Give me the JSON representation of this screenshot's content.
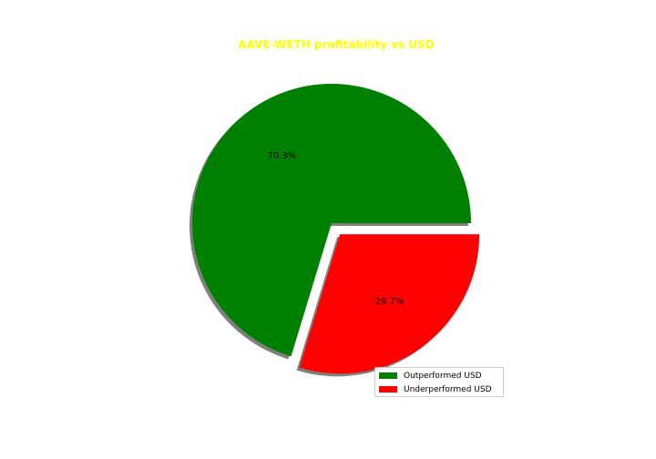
{
  "chart_data": {
    "type": "pie",
    "title": "AAVE-WETH profitability vs USD",
    "title_color": "#ffff00",
    "slices": [
      {
        "label": "Outperformed USD",
        "value": 70.3,
        "display": "70.3%",
        "color": "#008000",
        "exploded": false
      },
      {
        "label": "Underperformed USD",
        "value": 29.7,
        "display": "29.7%",
        "color": "#ff0000",
        "exploded": true
      }
    ],
    "shadow": true,
    "legend_position": "lower-right"
  }
}
